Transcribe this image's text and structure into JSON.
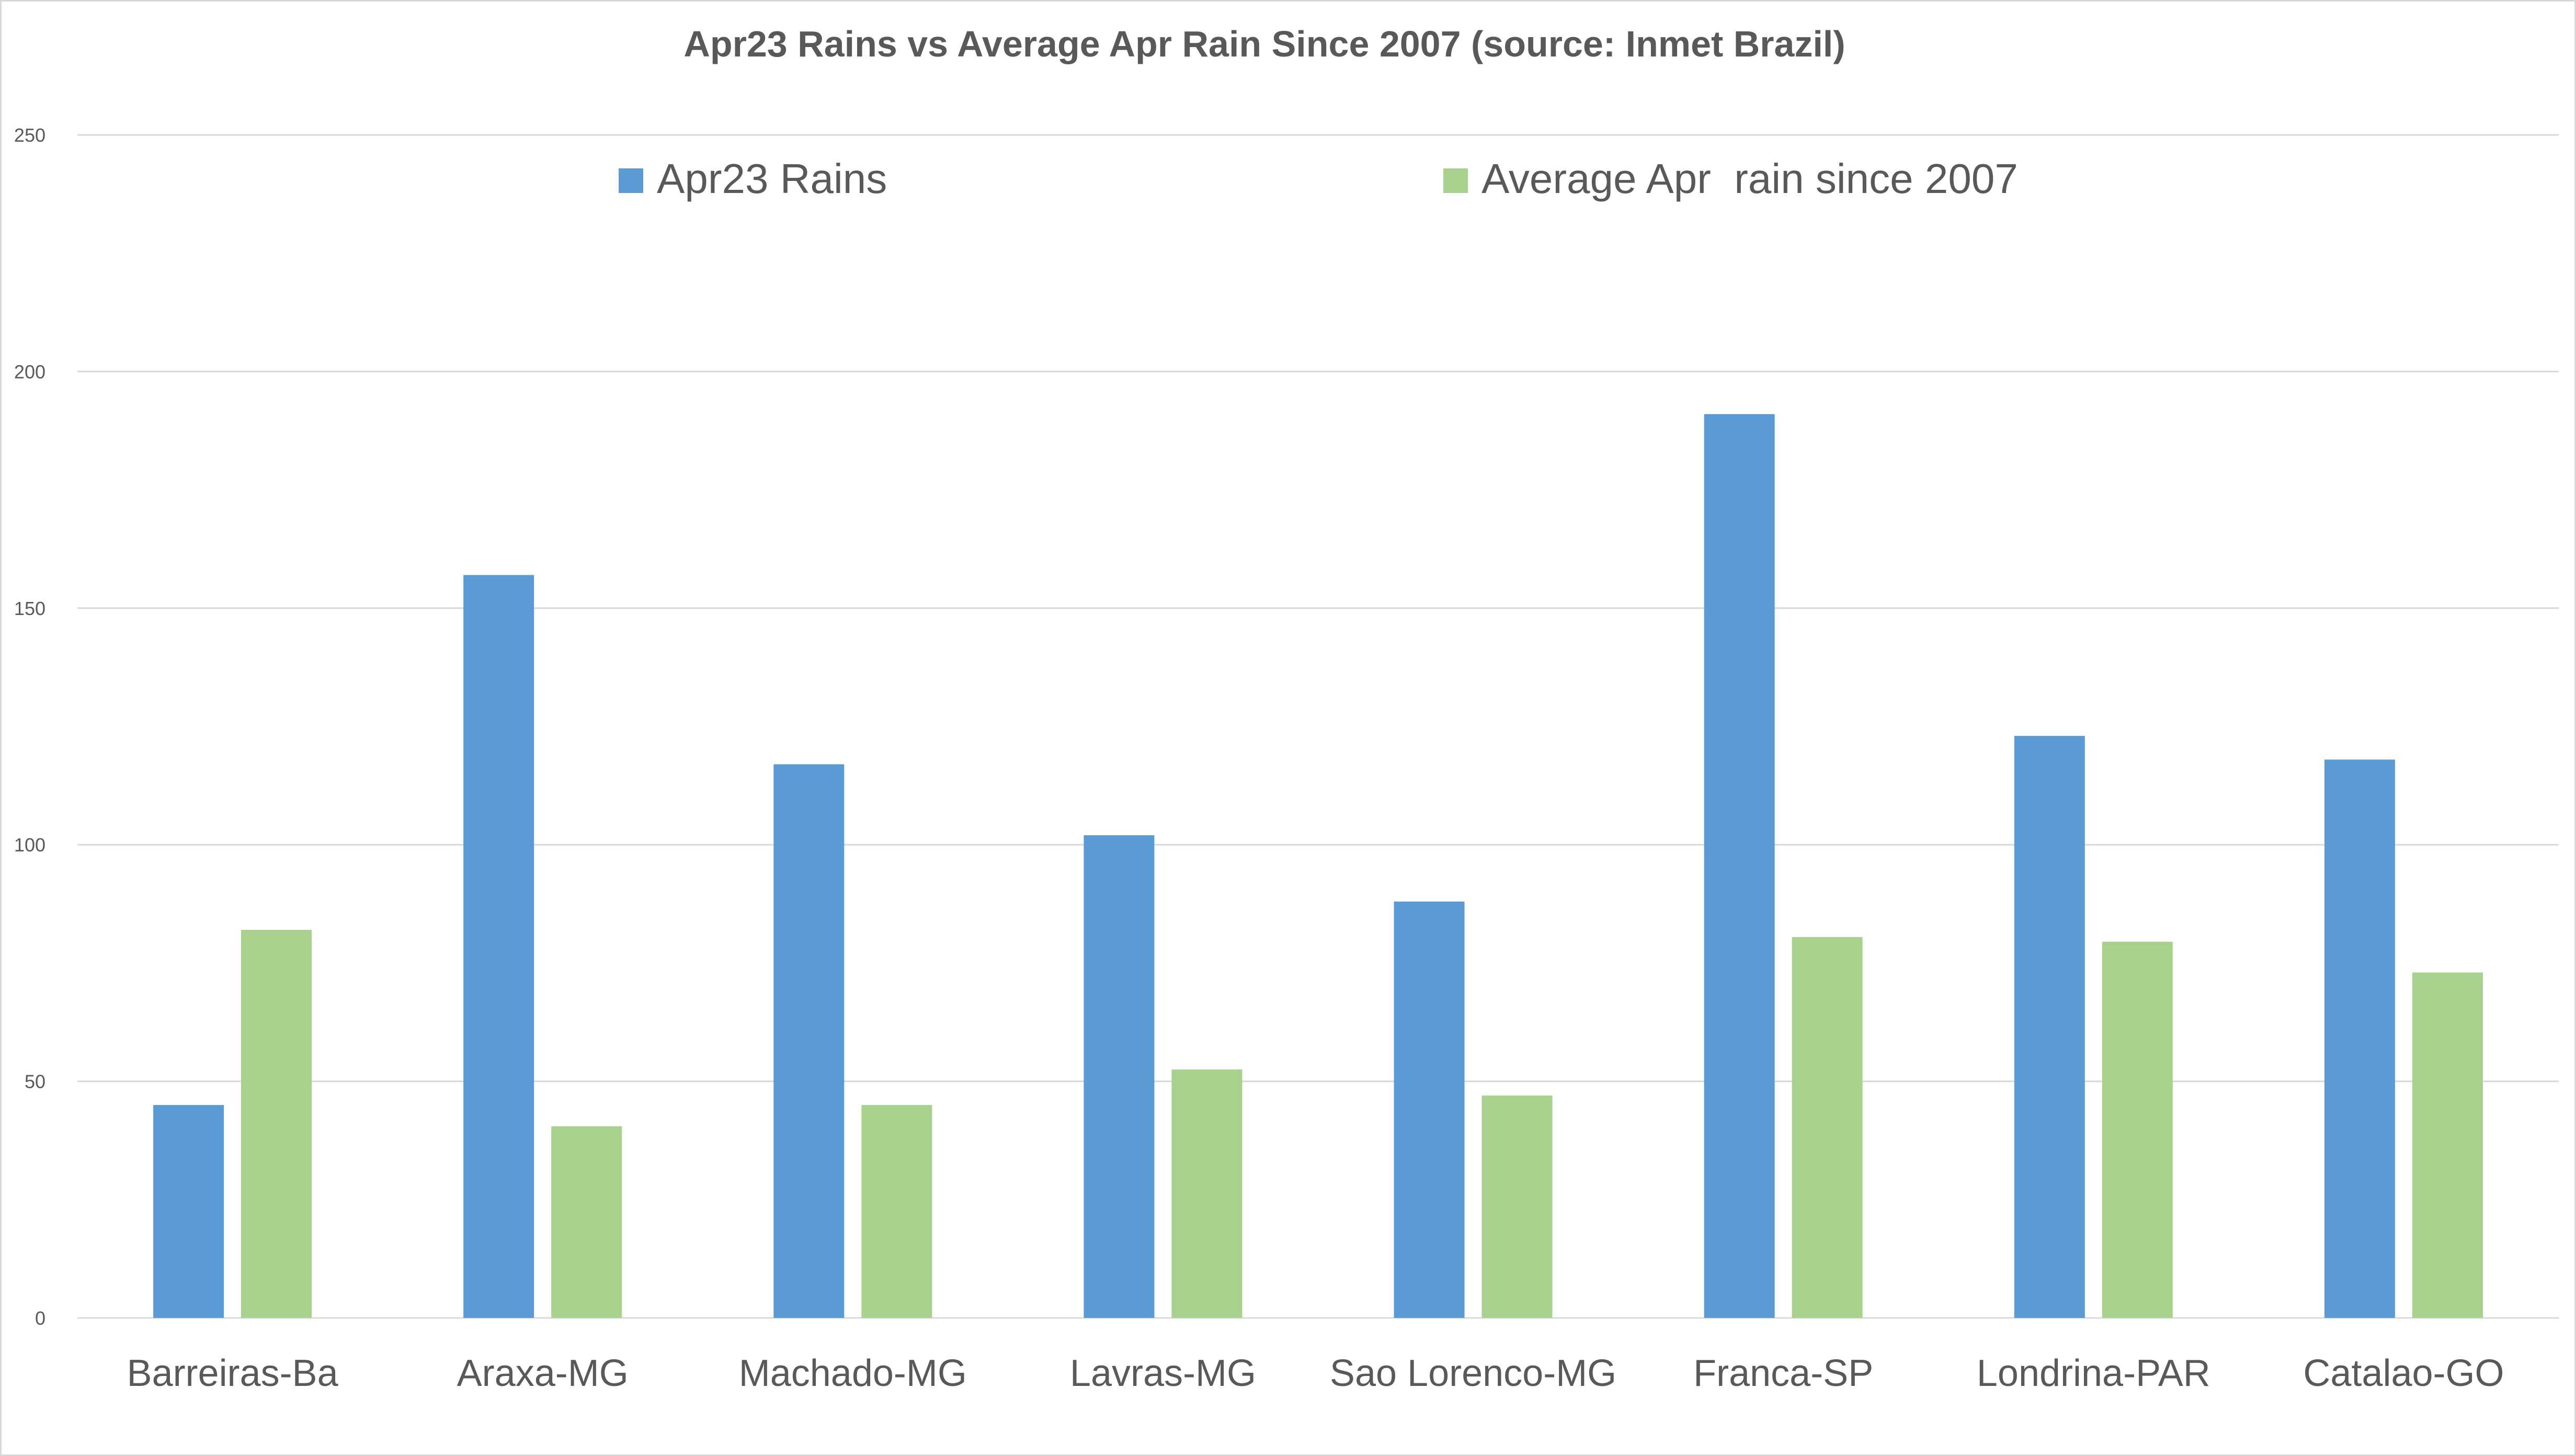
{
  "chart_data": {
    "type": "bar",
    "title": "Apr23 Rains vs Average Apr Rain Since 2007 (source: Inmet Brazil)",
    "xlabel": "",
    "ylabel": "",
    "ylim": [
      0,
      250
    ],
    "yticks": [
      0,
      50,
      100,
      150,
      200,
      250
    ],
    "grid": true,
    "legend_position": "top",
    "categories": [
      "Barreiras-Ba",
      "Araxa-MG",
      "Machado-MG",
      "Lavras-MG",
      "Sao Lorenco-MG",
      "Franca-SP",
      "Londrina-PAR",
      "Catalao-GO"
    ],
    "series": [
      {
        "name": "Apr23 Rains",
        "color": "#5b9bd5",
        "values": [
          45,
          157,
          117,
          102,
          88,
          191,
          123,
          118
        ]
      },
      {
        "name": "Average Apr  rain since 2007",
        "color": "#a9d18e",
        "values": [
          82,
          40.5,
          45,
          52.5,
          47,
          80.5,
          79.5,
          73
        ]
      }
    ]
  }
}
